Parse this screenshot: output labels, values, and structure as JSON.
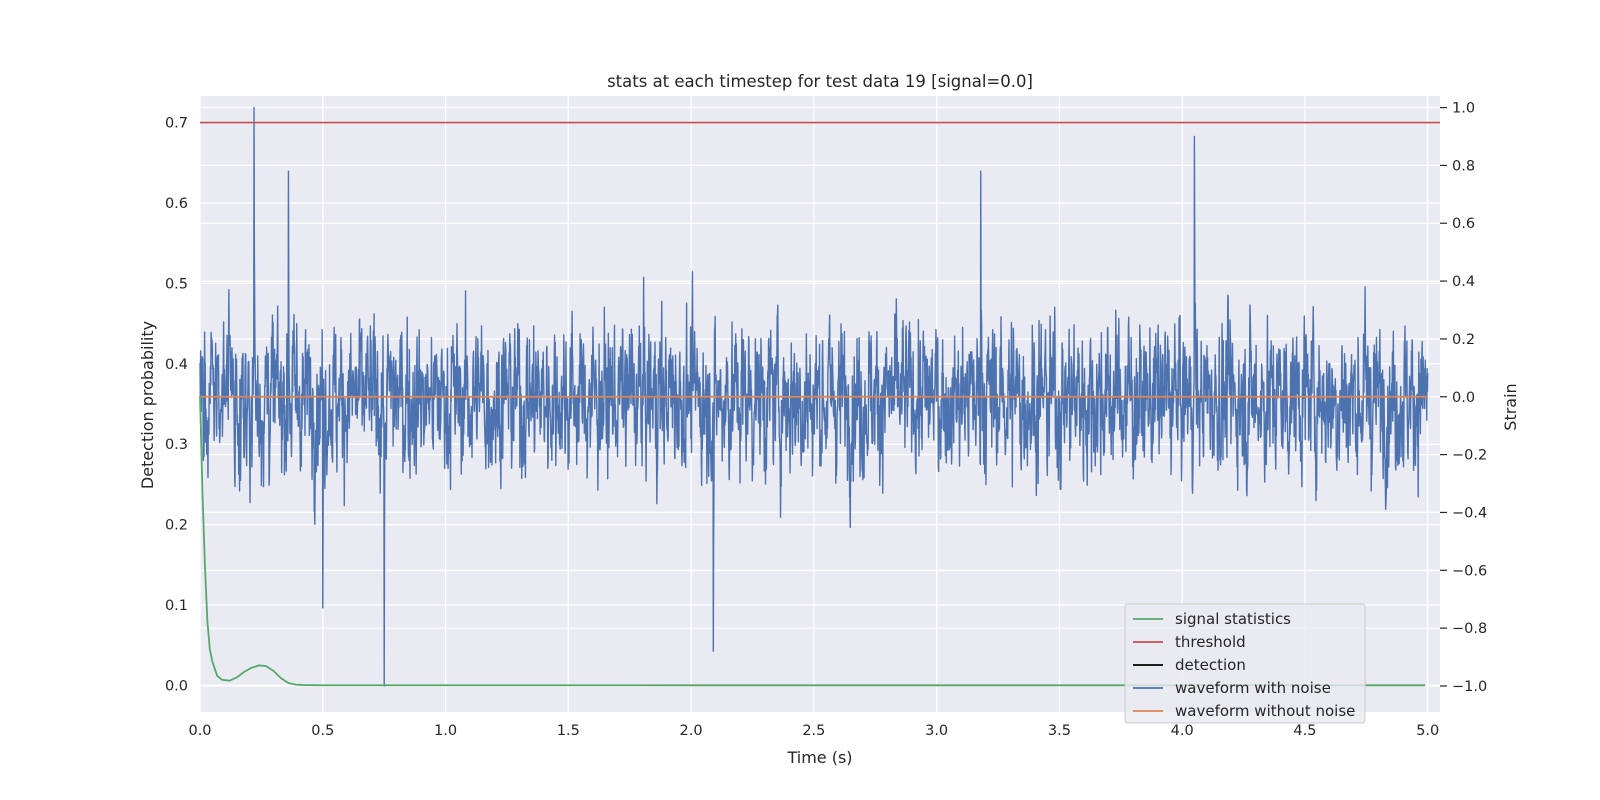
{
  "chart_data": {
    "type": "line",
    "title": "stats at each timestep for test data 19 [signal=0.0]",
    "xlabel": "Time (s)",
    "ylabel": "Detection probability",
    "ylabel_right": "Strain",
    "xlim": [
      0.0,
      5.05
    ],
    "ylim": [
      -0.033,
      0.733
    ],
    "ylim_right": [
      -1.09,
      1.04
    ],
    "x_ticks": [
      "0.0",
      "0.5",
      "1.0",
      "1.5",
      "2.0",
      "2.5",
      "3.0",
      "3.5",
      "4.0",
      "4.5",
      "5.0"
    ],
    "y_ticks": [
      "0.0",
      "0.1",
      "0.2",
      "0.3",
      "0.4",
      "0.5",
      "0.6",
      "0.7"
    ],
    "y_ticks_right": [
      "−1.0",
      "−0.8",
      "−0.6",
      "−0.4",
      "−0.2",
      "0.0",
      "0.2",
      "0.4",
      "0.6",
      "0.8",
      "1.0"
    ],
    "grid": true,
    "legend_position": "lower-right",
    "colors": {
      "plot_background": "#eaeaf2",
      "grid": "#ffffff",
      "signal_statistics": "#55a868",
      "threshold": "#c44e52",
      "detection": "#000000",
      "waveform_with_noise": "#4c72b0",
      "waveform_without_noise": "#dd8452"
    },
    "series": [
      {
        "name": "signal statistics",
        "axis": "left",
        "x": [
          0.0,
          0.01,
          0.02,
          0.03,
          0.04,
          0.05,
          0.07,
          0.09,
          0.12,
          0.15,
          0.18,
          0.21,
          0.24,
          0.27,
          0.3,
          0.33,
          0.36,
          0.39,
          0.42,
          0.5,
          1.0,
          2.0,
          3.0,
          4.0,
          4.99
        ],
        "y": [
          0.36,
          0.24,
          0.15,
          0.08,
          0.045,
          0.03,
          0.012,
          0.007,
          0.006,
          0.01,
          0.017,
          0.022,
          0.025,
          0.024,
          0.018,
          0.009,
          0.003,
          0.001,
          0.0005,
          0.0003,
          0.0003,
          0.0002,
          0.0002,
          0.0002,
          0.0002
        ]
      },
      {
        "name": "threshold",
        "axis": "left",
        "x": [
          0.0,
          5.05
        ],
        "y": [
          0.7,
          0.7
        ]
      },
      {
        "name": "detection",
        "axis": "left",
        "x": [],
        "y": []
      },
      {
        "name": "waveform with noise",
        "axis": "right",
        "type": "noise",
        "x_range": [
          0.0,
          5.0
        ],
        "typical_amplitude": 0.4,
        "max_strain": 1.0,
        "min_strain": -1.0,
        "peaks": [
          {
            "x": 0.22,
            "y": 1.0
          },
          {
            "x": 0.36,
            "y": 0.78
          },
          {
            "x": 4.05,
            "y": 0.9
          },
          {
            "x": 3.18,
            "y": 0.78
          },
          {
            "x": 0.75,
            "y": -1.0
          },
          {
            "x": 2.09,
            "y": -0.88
          },
          {
            "x": 0.5,
            "y": -0.73
          }
        ]
      },
      {
        "name": "waveform without noise",
        "axis": "right",
        "x": [
          0.0,
          5.0
        ],
        "y": [
          0.0,
          0.0
        ]
      }
    ]
  }
}
